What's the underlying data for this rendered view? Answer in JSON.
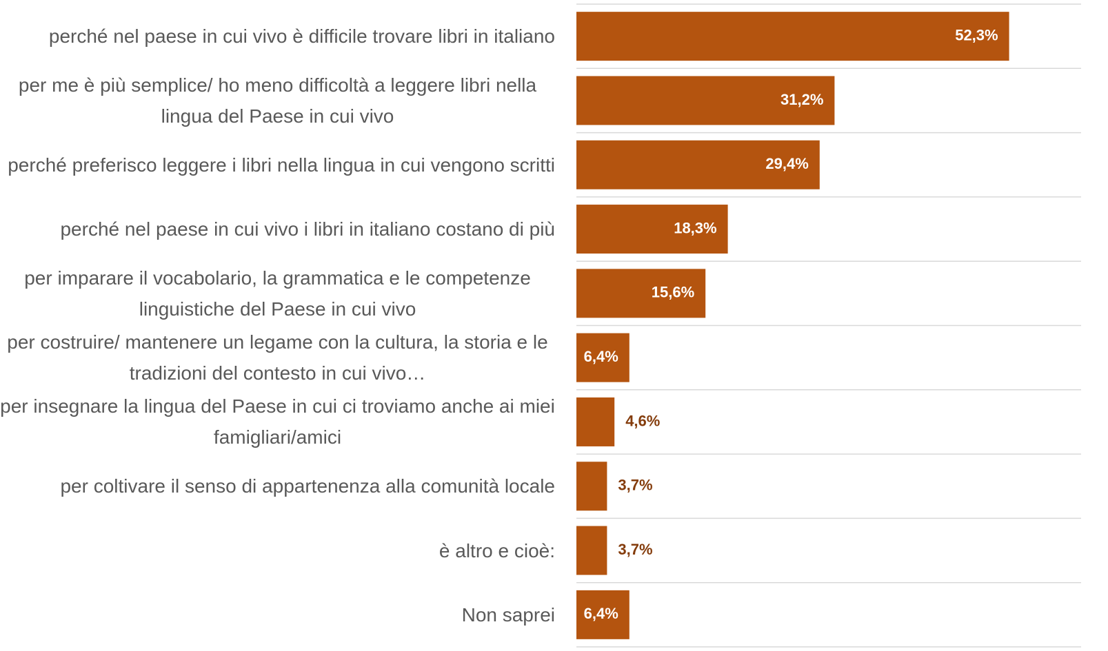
{
  "chart_data": {
    "type": "bar",
    "orientation": "horizontal",
    "categories": [
      "perché nel paese in cui vivo è difficile trovare libri in italiano",
      "per me è più semplice/ ho meno difficoltà a leggere libri nella lingua del Paese in cui vivo",
      "perché preferisco leggere i libri nella lingua in cui vengono scritti",
      "perché nel paese in cui vivo i libri in italiano costano di più",
      "per imparare il vocabolario, la grammatica e le competenze linguistiche del Paese in cui vivo",
      "per costruire/ mantenere un legame con la cultura, la storia e le tradizioni del contesto in cui vivo…",
      "per insegnare la lingua del Paese in cui ci troviamo anche ai miei famigliari/amici",
      "per coltivare il senso di appartenenza alla comunità locale",
      "è altro e cioè:",
      "Non saprei"
    ],
    "values": [
      52.3,
      31.2,
      29.4,
      18.3,
      15.6,
      6.4,
      4.6,
      3.7,
      3.7,
      6.4
    ],
    "value_labels": [
      "52,3%",
      "31,2%",
      "29,4%",
      "18,3%",
      "15,6%",
      "6,4%",
      "4,6%",
      "3,7%",
      "3,7%",
      "6,4%"
    ],
    "color": "#b4540f",
    "xlim": [
      0,
      61
    ]
  }
}
